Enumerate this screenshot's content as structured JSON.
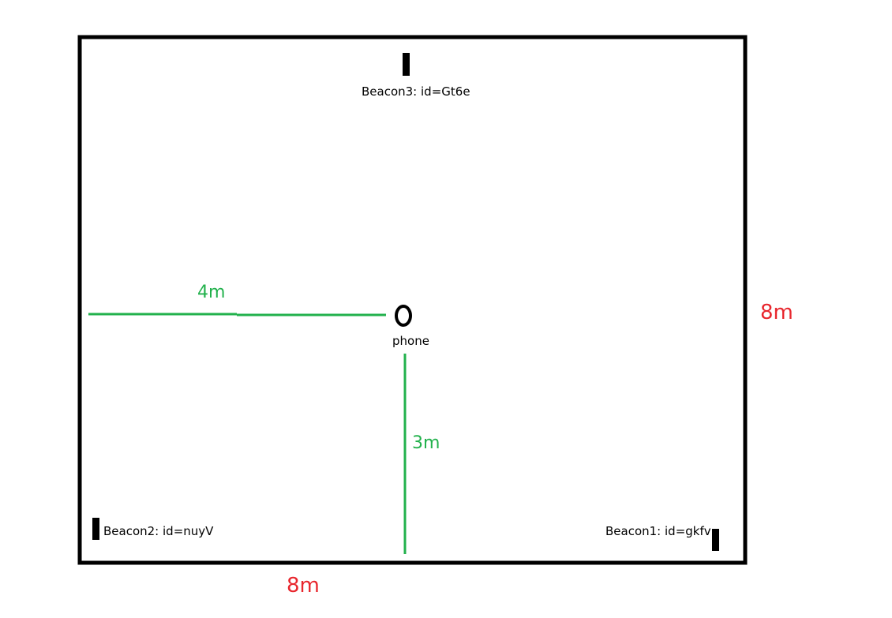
{
  "colors": {
    "wall": "#000000",
    "beacon": "#000000",
    "phone": "#000000",
    "distance_line": "#22b14c",
    "room_dimension": "#e8262d",
    "background": "#ffffff"
  },
  "room": {
    "width_label": "8m",
    "height_label": "8m"
  },
  "beacons": [
    {
      "label": "Beacon3: id=Gt6e"
    },
    {
      "label": "Beacon2: id=nuyV"
    },
    {
      "label": "Beacon1: id=gkfv"
    }
  ],
  "phone": {
    "label": "phone",
    "icon": "ellipse-marker"
  },
  "distances": {
    "horizontal_label": "4m",
    "vertical_label": "3m"
  }
}
